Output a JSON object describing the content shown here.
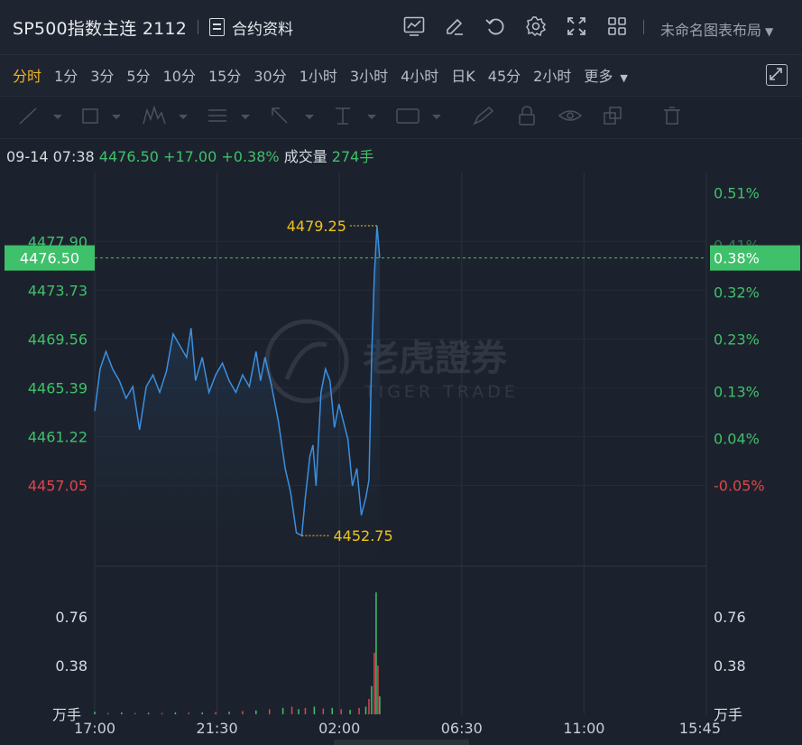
{
  "header": {
    "title": "SP500指数主连 2112",
    "contract_label": "合约资料",
    "layout_label": "未命名图表布局",
    "icons": [
      "chart-indicator-icon",
      "edit-icon",
      "undo-icon",
      "settings-icon",
      "fullscreen-icon",
      "grid-layout-icon"
    ]
  },
  "periods": {
    "items": [
      "分时",
      "1分",
      "3分",
      "5分",
      "10分",
      "15分",
      "30分",
      "1小时",
      "3小时",
      "4小时",
      "日K",
      "45分",
      "2小时",
      "更多"
    ],
    "active": "分时"
  },
  "drawing_tools": [
    "line-tool-icon",
    "rectangle-tool-icon",
    "pattern-tool-icon",
    "fibonacci-tool-icon",
    "arrow-tool-icon",
    "measure-tool-icon",
    "text-tool-icon",
    "brush-icon",
    "lock-icon",
    "eye-icon",
    "layers-icon",
    "trash-icon"
  ],
  "info": {
    "datetime": "09-14 07:38",
    "price": "4476.50",
    "change": "+17.00",
    "change_pct": "+0.38%",
    "volume_label": "成交量",
    "volume": "274手"
  },
  "colors": {
    "up": "#3fc06a",
    "down": "#e0444b",
    "line": "#3b8fe0",
    "highlight": "#f0c419"
  },
  "watermark": {
    "cn": "老虎證券",
    "en": "TIGER TRADE"
  },
  "chart_data": {
    "type": "line",
    "current_price": "4476.50",
    "current_pct": "0.38%",
    "high_label": "4479.25",
    "low_label": "4452.75",
    "high": 4479.25,
    "low": 4452.75,
    "y_ticks_left": [
      "4477.90",
      "4473.73",
      "4469.56",
      "4465.39",
      "4461.22",
      "4457.05"
    ],
    "y_ticks_left_values": [
      4477.9,
      4473.73,
      4469.56,
      4465.39,
      4461.22,
      4457.05
    ],
    "y_ticks_right": [
      "0.51%",
      "0.41%",
      "0.32%",
      "0.23%",
      "0.13%",
      "0.04%",
      "-0.05%"
    ],
    "y_ticks_right_values": [
      0.51,
      0.41,
      0.32,
      0.23,
      0.13,
      0.04,
      -0.05
    ],
    "x_ticks": [
      "17:00",
      "21:30",
      "02:00",
      "06:30",
      "11:00",
      "15:45"
    ],
    "volume_ticks": [
      "0.76",
      "0.38"
    ],
    "volume_ticks_values": [
      0.76,
      0.38
    ],
    "volume_unit": "万手",
    "session_bars": 1365,
    "price_series": [
      [
        0,
        4463.4
      ],
      [
        12,
        4467.0
      ],
      [
        25,
        4468.5
      ],
      [
        40,
        4467.0
      ],
      [
        55,
        4466.0
      ],
      [
        70,
        4464.5
      ],
      [
        85,
        4465.5
      ],
      [
        100,
        4461.8
      ],
      [
        115,
        4465.5
      ],
      [
        130,
        4466.5
      ],
      [
        145,
        4465.0
      ],
      [
        160,
        4466.8
      ],
      [
        175,
        4470.0
      ],
      [
        190,
        4469.0
      ],
      [
        205,
        4468.0
      ],
      [
        215,
        4470.5
      ],
      [
        225,
        4466.0
      ],
      [
        240,
        4468.0
      ],
      [
        255,
        4465.0
      ],
      [
        270,
        4466.5
      ],
      [
        285,
        4467.5
      ],
      [
        300,
        4466.0
      ],
      [
        315,
        4465.0
      ],
      [
        330,
        4466.5
      ],
      [
        345,
        4465.5
      ],
      [
        360,
        4468.5
      ],
      [
        370,
        4466.0
      ],
      [
        380,
        4468.0
      ],
      [
        395,
        4465.5
      ],
      [
        410,
        4462.5
      ],
      [
        425,
        4458.5
      ],
      [
        437,
        4456.5
      ],
      [
        450,
        4453.0
      ],
      [
        462,
        4452.75
      ],
      [
        470,
        4456.0
      ],
      [
        480,
        4459.5
      ],
      [
        487,
        4460.5
      ],
      [
        494,
        4457.0
      ],
      [
        505,
        4465.0
      ],
      [
        515,
        4467.0
      ],
      [
        525,
        4466.0
      ],
      [
        535,
        4462.0
      ],
      [
        545,
        4464.0
      ],
      [
        555,
        4462.5
      ],
      [
        565,
        4461.0
      ],
      [
        575,
        4457.0
      ],
      [
        585,
        4458.5
      ],
      [
        595,
        4454.5
      ],
      [
        605,
        4456.0
      ],
      [
        612,
        4457.5
      ],
      [
        618,
        4468.0
      ],
      [
        624,
        4475.0
      ],
      [
        630,
        4479.25
      ],
      [
        636,
        4476.5
      ]
    ],
    "volume_series": [
      [
        0,
        0.02
      ],
      [
        30,
        0.01
      ],
      [
        60,
        0.015
      ],
      [
        90,
        0.01
      ],
      [
        120,
        0.012
      ],
      [
        150,
        0.01
      ],
      [
        180,
        0.015
      ],
      [
        210,
        0.012
      ],
      [
        240,
        0.015
      ],
      [
        270,
        0.018
      ],
      [
        300,
        0.02
      ],
      [
        330,
        0.025
      ],
      [
        360,
        0.03
      ],
      [
        390,
        0.04
      ],
      [
        420,
        0.05
      ],
      [
        440,
        0.06
      ],
      [
        455,
        0.04
      ],
      [
        470,
        0.05
      ],
      [
        490,
        0.06
      ],
      [
        510,
        0.045
      ],
      [
        530,
        0.05
      ],
      [
        550,
        0.04
      ],
      [
        570,
        0.035
      ],
      [
        590,
        0.05
      ],
      [
        605,
        0.06
      ],
      [
        612,
        0.12
      ],
      [
        618,
        0.22
      ],
      [
        624,
        0.48
      ],
      [
        628,
        0.95
      ],
      [
        632,
        0.38
      ],
      [
        636,
        0.14
      ]
    ]
  }
}
